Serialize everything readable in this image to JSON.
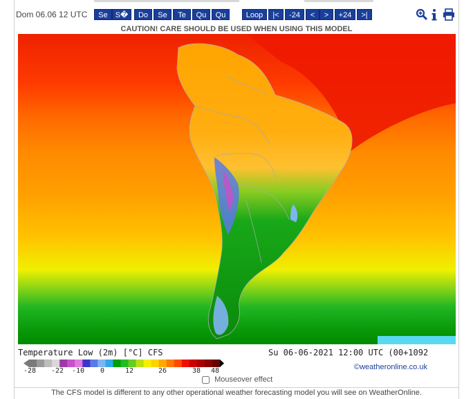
{
  "toolbar": {
    "date_label": "Dom 06.06 12 UTC",
    "days": [
      "Se",
      "S�",
      "Do",
      "Se",
      "Te",
      "Qu",
      "Qu"
    ],
    "loop_label": "Loop",
    "first_label": "|<",
    "minus24_label": "-24",
    "prev_label": "<",
    "next_label": ">",
    "plus24_label": "+24",
    "last_label": ">|",
    "icons": [
      "zoom-in-icon",
      "info-icon",
      "printer-icon"
    ]
  },
  "caution": "CAUTION! CARE SHOULD BE USED WHEN USING THIS MODEL",
  "legend": {
    "title": "Temperature Low (2m) [°C] CFS",
    "date": "Su 06-06-2021 12:00 UTC (00+1092",
    "ticks": [
      "-28",
      "-22",
      "-10",
      "0",
      "12",
      "26",
      "38",
      "48"
    ],
    "colors": [
      "#7a7a7a",
      "#9a9a9a",
      "#bdbdbd",
      "#d9d9d9",
      "#9c3aa8",
      "#c651c8",
      "#e07ae0",
      "#3c36c8",
      "#5a7ae6",
      "#7fb4f2",
      "#2fa8e8",
      "#00a000",
      "#22bb22",
      "#66cc22",
      "#bbe011",
      "#f4f000",
      "#ffd200",
      "#ffa800",
      "#ff7a00",
      "#ff4a00",
      "#ee1100",
      "#cc0000",
      "#aa0000",
      "#880000",
      "#660000"
    ]
  },
  "copyright": "©weatheronline.co.uk",
  "mouseover_label": "Mouseover effect",
  "footer": "The CFS model is different to any other operational weather forecasting model you will see on WeatherOnline."
}
